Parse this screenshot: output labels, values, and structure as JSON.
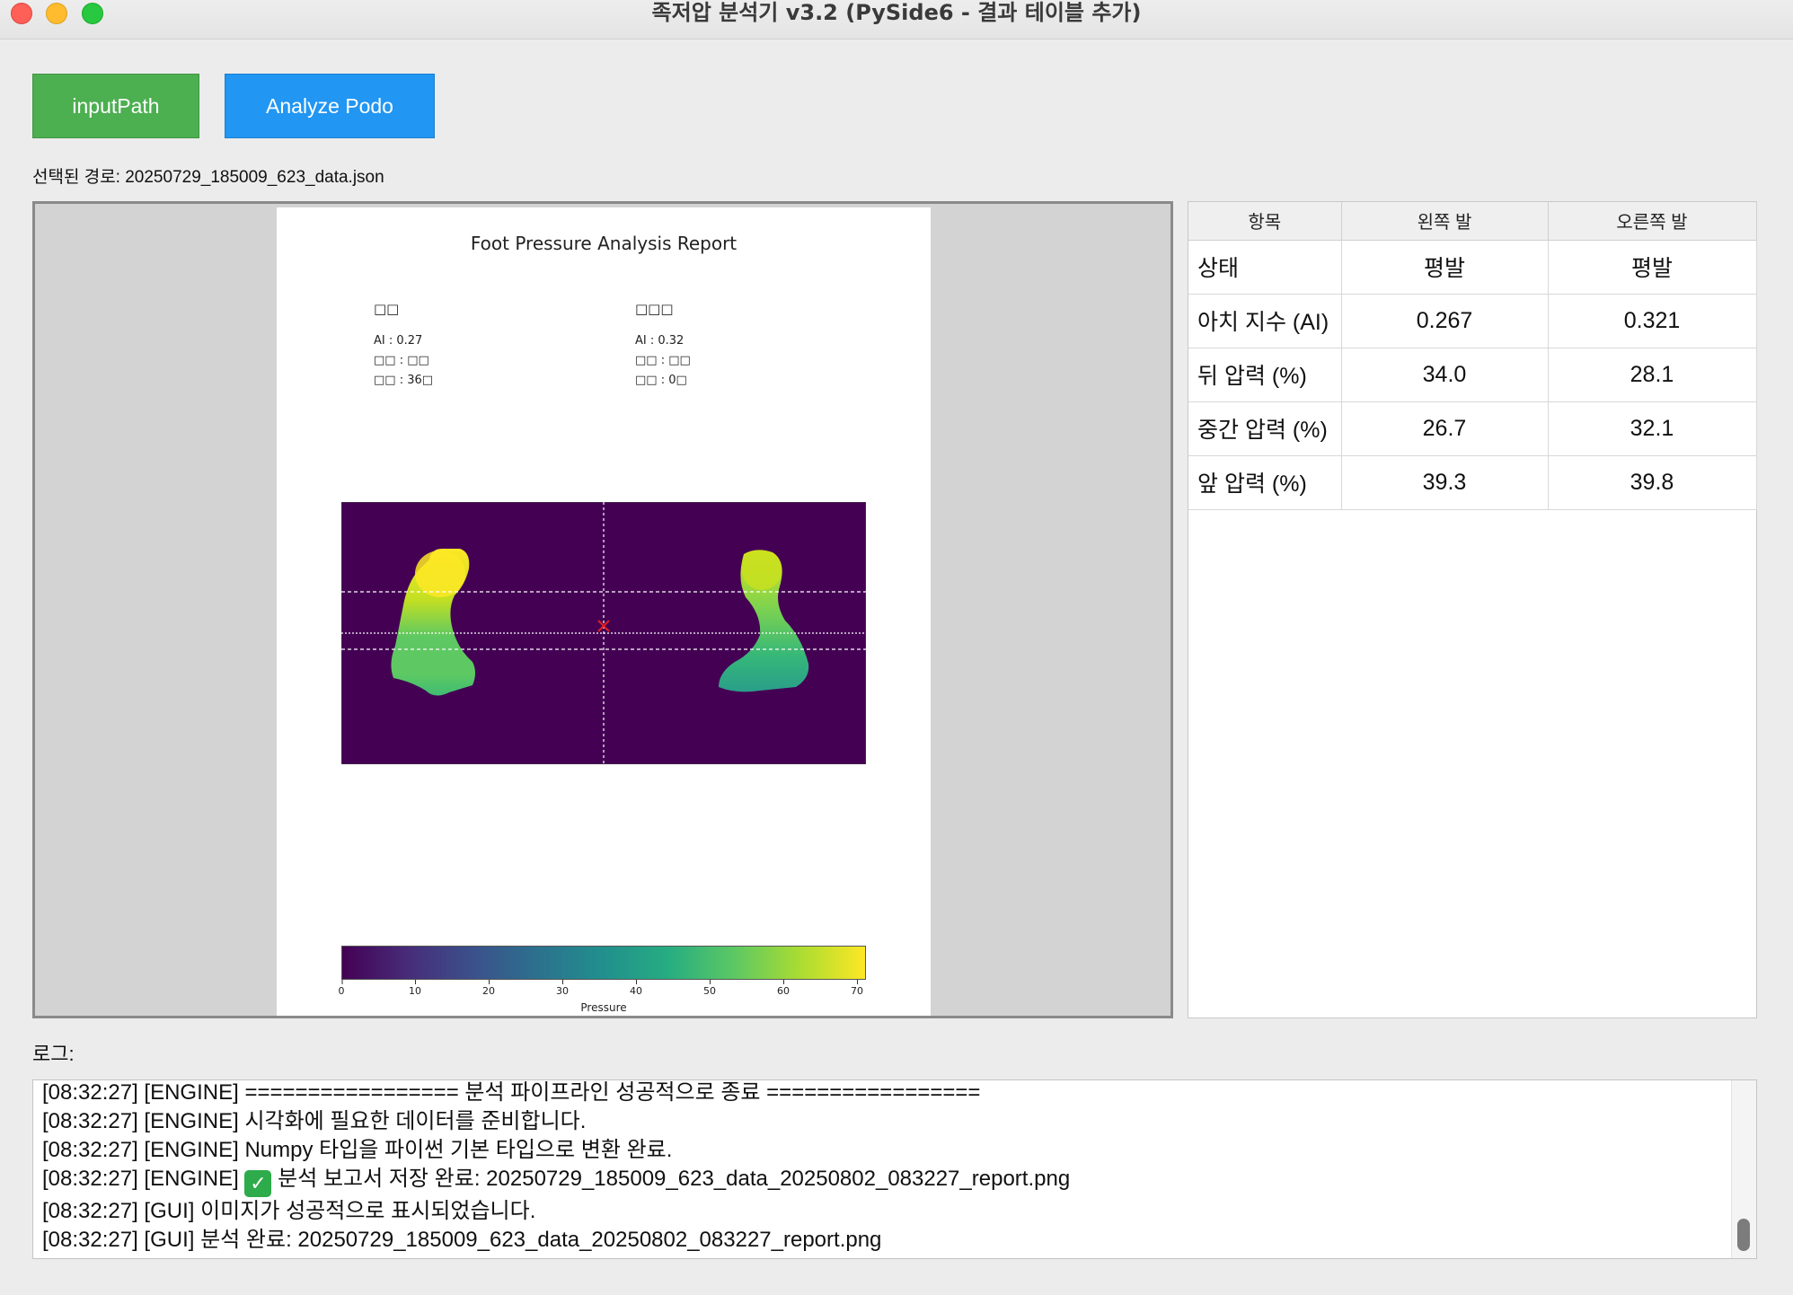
{
  "window": {
    "title": "족저압 분석기 v3.2 (PySide6 - 결과 테이블 추가)"
  },
  "toolbar": {
    "input_label": "inputPath",
    "analyze_label": "Analyze Podo",
    "input_color": "#4caf50",
    "analyze_color": "#2196f3"
  },
  "selected_path": "선택된 경로: 20250729_185009_623_data.json",
  "report": {
    "title": "Foot Pressure Analysis Report",
    "left": {
      "head": "□□",
      "lines": [
        "AI : 0.27",
        "□□ : □□",
        "□□ : 36□"
      ]
    },
    "right": {
      "head": "□□□",
      "lines": [
        "AI : 0.32",
        "□□ : □□",
        "□□ : 0□"
      ]
    },
    "colorbar": {
      "ticks": [
        "0",
        "10",
        "20",
        "30",
        "40",
        "50",
        "60",
        "70"
      ],
      "label": "Pressure",
      "colormap": "viridis"
    }
  },
  "results_table": {
    "headers": [
      "항목",
      "왼쪽 발",
      "오른쪽 발"
    ],
    "rows": [
      {
        "name": "상태",
        "left": "평발",
        "right": "평발"
      },
      {
        "name": "아치 지수 (AI)",
        "left": "0.267",
        "right": "0.321"
      },
      {
        "name": "뒤 압력 (%)",
        "left": "34.0",
        "right": "28.1"
      },
      {
        "name": "중간 압력 (%)",
        "left": "26.7",
        "right": "32.1"
      },
      {
        "name": "앞 압력 (%)",
        "left": "39.3",
        "right": "39.8"
      }
    ]
  },
  "log": {
    "label": "로그:",
    "lines": [
      "[08:32:27] [ENGINE] ================= 분석 파이프라인 성공적으로 종료 =================",
      "[08:32:27] [ENGINE] 시각화에 필요한 데이터를 준비합니다.",
      "[08:32:27] [ENGINE] Numpy 타입을 파이썬 기본 타입으로 변환 완료.",
      "[08:32:27] [ENGINE] ",
      "[08:32:27] [GUI] 이미지가 성공적으로 표시되었습니다.",
      "[08:32:27] [GUI] 분석 완료: 20250729_185009_623_data_20250802_083227_report.png"
    ],
    "check_line_suffix": " 분석 보고서 저장 완료: 20250729_185009_623_data_20250802_083227_report.png",
    "check_icon": "check-mark-icon"
  }
}
